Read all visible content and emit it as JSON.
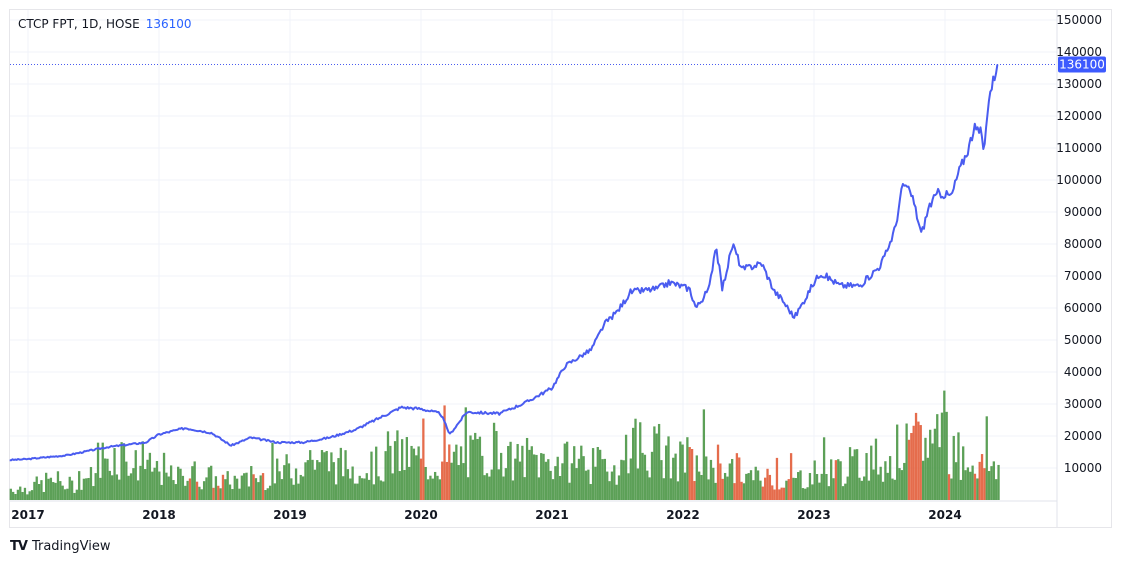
{
  "chart_data": {
    "type": "line",
    "title": "CTCP FPT, 1D, HOSE",
    "last_value_label": "136100",
    "last_value": 136100,
    "ylim": [
      0,
      150000
    ],
    "y_ticks": [
      10000,
      20000,
      30000,
      40000,
      50000,
      60000,
      70000,
      80000,
      90000,
      100000,
      110000,
      120000,
      130000,
      140000,
      150000
    ],
    "y_tick_labels": [
      "10000",
      "20000",
      "30000",
      "40000",
      "50000",
      "60000",
      "70000",
      "80000",
      "90000",
      "100000",
      "110000",
      "120000",
      "130000",
      "140000",
      "150000"
    ],
    "x_ticks": [
      2017,
      2018,
      2019,
      2020,
      2021,
      2022,
      2023,
      2024
    ],
    "x_tick_labels": [
      "2017",
      "2018",
      "2019",
      "2020",
      "2021",
      "2022",
      "2023",
      "2024"
    ],
    "xlim": [
      2016.86,
      2024.4
    ],
    "grid": true,
    "series": [
      {
        "name": "FPT price",
        "color": "#4a5cf0",
        "x": [
          2016.86,
          2017.0,
          2017.3,
          2017.6,
          2017.9,
          2018.0,
          2018.2,
          2018.4,
          2018.55,
          2018.7,
          2018.9,
          2019.1,
          2019.3,
          2019.5,
          2019.7,
          2019.85,
          2020.0,
          2020.15,
          2020.22,
          2020.35,
          2020.6,
          2020.8,
          2021.0,
          2021.1,
          2021.3,
          2021.4,
          2021.5,
          2021.6,
          2021.8,
          2021.9,
          2022.05,
          2022.1,
          2022.2,
          2022.25,
          2022.3,
          2022.38,
          2022.45,
          2022.6,
          2022.7,
          2022.75,
          2022.85,
          2022.92,
          2023.0,
          2023.05,
          2023.2,
          2023.35,
          2023.5,
          2023.55,
          2023.62,
          2023.68,
          2023.75,
          2023.82,
          2023.88,
          2023.95,
          2024.05,
          2024.1,
          2024.18,
          2024.22,
          2024.27,
          2024.3,
          2024.33,
          2024.4
        ],
        "y": [
          12500,
          12800,
          14000,
          16500,
          18000,
          20500,
          22500,
          21000,
          17000,
          19500,
          18000,
          18000,
          19500,
          22000,
          26000,
          29000,
          28500,
          27000,
          20500,
          27500,
          27000,
          30500,
          35000,
          42000,
          47000,
          55000,
          59000,
          65000,
          66000,
          68000,
          66000,
          60000,
          66000,
          80000,
          66000,
          80000,
          72000,
          74000,
          65000,
          63000,
          57000,
          62000,
          68000,
          71000,
          67000,
          67000,
          73000,
          77000,
          85000,
          99000,
          95000,
          83000,
          92000,
          96000,
          95000,
          102000,
          110000,
          116000,
          115000,
          109000,
          125000,
          136100
        ]
      }
    ],
    "volume": {
      "name": "Volume",
      "up_color": "#3f8f3a",
      "down_color": "#e0522d",
      "relative": [
        0.15,
        0.2,
        0.25,
        0.2,
        0.3,
        0.55,
        0.6,
        0.45,
        0.4,
        0.3,
        0.35,
        0.3,
        0.25,
        0.25,
        0.3,
        0.35,
        0.4,
        0.55,
        0.5,
        0.45,
        0.4,
        0.45,
        0.6,
        0.55,
        0.45,
        0.5,
        0.55,
        0.6,
        0.7,
        0.5,
        0.55,
        0.5,
        0.5,
        0.55,
        0.45,
        0.45,
        0.75,
        0.65,
        0.55,
        0.5,
        0.45,
        0.5,
        0.4,
        0.3,
        0.3,
        0.25,
        0.3,
        0.35,
        0.4,
        0.45,
        0.55,
        0.5,
        0.65,
        0.75,
        0.95,
        0.6,
        0.5,
        0.45
      ]
    }
  },
  "branding": {
    "logo_text": "TradingView"
  }
}
